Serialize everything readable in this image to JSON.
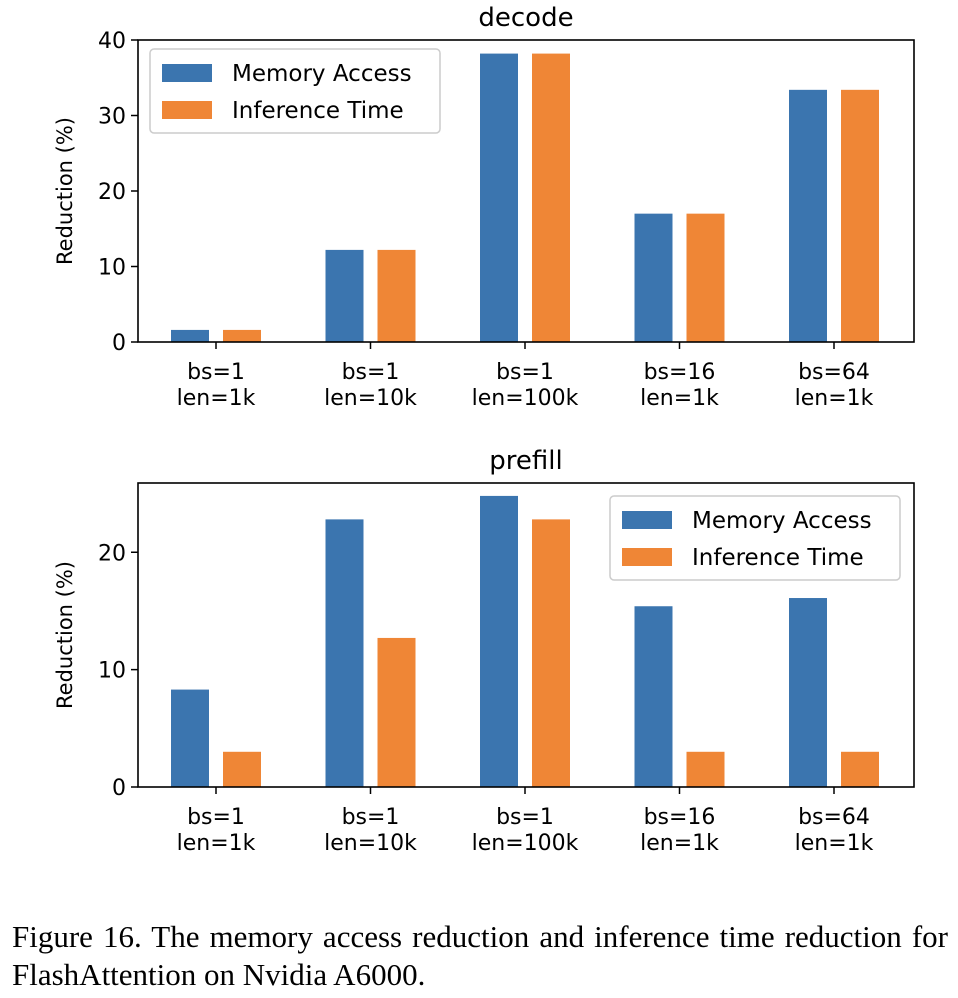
{
  "colors": {
    "memory": "#3b75af",
    "inference": "#ef8636"
  },
  "chart_data": [
    {
      "type": "bar",
      "title": "decode",
      "xlabel": "",
      "ylabel": "Reduction (%)",
      "ylim": [
        0,
        40
      ],
      "yticks": [
        0,
        10,
        20,
        30,
        40
      ],
      "categories": [
        [
          "bs=1",
          "len=1k"
        ],
        [
          "bs=1",
          "len=10k"
        ],
        [
          "bs=1",
          "len=100k"
        ],
        [
          "bs=16",
          "len=1k"
        ],
        [
          "bs=64",
          "len=1k"
        ]
      ],
      "series": [
        {
          "name": "Memory Access",
          "values": [
            1.6,
            12.2,
            38.2,
            17.0,
            33.4
          ]
        },
        {
          "name": "Inference Time",
          "values": [
            1.6,
            12.2,
            38.2,
            17.0,
            33.4
          ]
        }
      ],
      "legend": "top-left",
      "grid": false
    },
    {
      "type": "bar",
      "title": "prefill",
      "xlabel": "",
      "ylabel": "Reduction (%)",
      "ylim": [
        0,
        25.9
      ],
      "yticks": [
        0,
        10,
        20
      ],
      "categories": [
        [
          "bs=1",
          "len=1k"
        ],
        [
          "bs=1",
          "len=10k"
        ],
        [
          "bs=1",
          "len=100k"
        ],
        [
          "bs=16",
          "len=1k"
        ],
        [
          "bs=64",
          "len=1k"
        ]
      ],
      "series": [
        {
          "name": "Memory Access",
          "values": [
            8.3,
            22.8,
            24.8,
            15.4,
            16.1
          ]
        },
        {
          "name": "Inference Time",
          "values": [
            3.0,
            12.7,
            22.8,
            3.0,
            3.0
          ]
        }
      ],
      "legend": "top-right",
      "grid": false
    }
  ],
  "caption": "Figure 16.  The memory access reduction and inference time reduction for FlashAttention on Nvidia A6000."
}
